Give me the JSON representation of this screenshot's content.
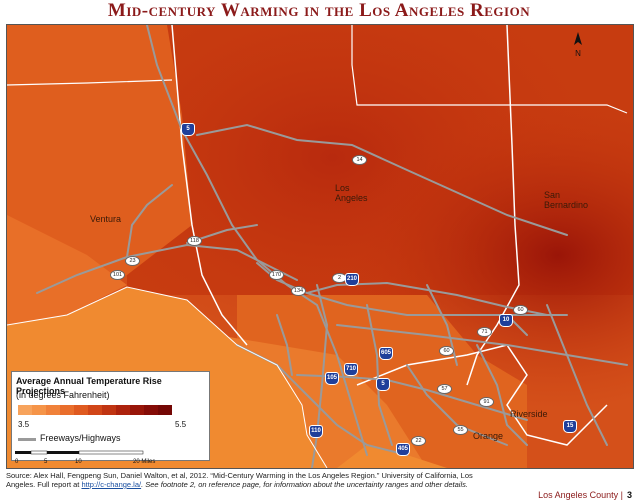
{
  "title": "Mid-century Warming in the Los Angeles Region",
  "places": {
    "los_angeles": "Los\nAngeles",
    "ventura": "Ventura",
    "san_bernardino": "San\nBernardino",
    "riverside": "Riverside",
    "orange": "Orange"
  },
  "highways": {
    "i5_north": "5",
    "sr14": "14",
    "sr118": "118",
    "sr23": "23",
    "us101": "101",
    "sr170": "170",
    "sr134": "134",
    "sr2": "2",
    "i210": "210",
    "sr60": "60",
    "sr71": "71",
    "i10": "10",
    "i605": "605",
    "i710": "710",
    "i105": "105",
    "i5_south": "5",
    "sr57": "57",
    "sr91": "91",
    "sr55": "55",
    "sr22": "22",
    "i405": "405",
    "i110": "110",
    "i15": "15"
  },
  "legend": {
    "title": "Average Annual Temperature Rise Projections",
    "subtitle": "(in degrees Fahrenheit)",
    "min_label": "3.5",
    "max_label": "5.5",
    "ramp_colors": [
      "#f7a35c",
      "#f59448",
      "#f0813a",
      "#e96e2c",
      "#df5a20",
      "#d14618",
      "#c03412",
      "#ad220d",
      "#981509",
      "#850c07",
      "#740705"
    ],
    "freeway_label": "Freeways/Highways"
  },
  "scale": {
    "ticks": [
      "0",
      "5",
      "10",
      "20 Miles"
    ]
  },
  "north_label": "N",
  "footer": {
    "source_text_1": "Source: Alex Hall, Fengpeng Sun, Daniel Walton, et al, 2012. “Mid-Century Warming in the Los Angeles Region.” University of California, Los",
    "source_text_2": "Angeles. Full report at ",
    "source_link": "http://c-change.la/",
    "source_text_3": ". See footnote 2, on reference page, for information about the uncertainty ranges and other details.",
    "section": "Los Angeles County |",
    "page_number": "3"
  },
  "colors": {
    "title": "#8b1a1a",
    "ocean": "#f08a30",
    "freeway": "#9a9a9a",
    "interstate_shield": "#1f3f9a"
  }
}
